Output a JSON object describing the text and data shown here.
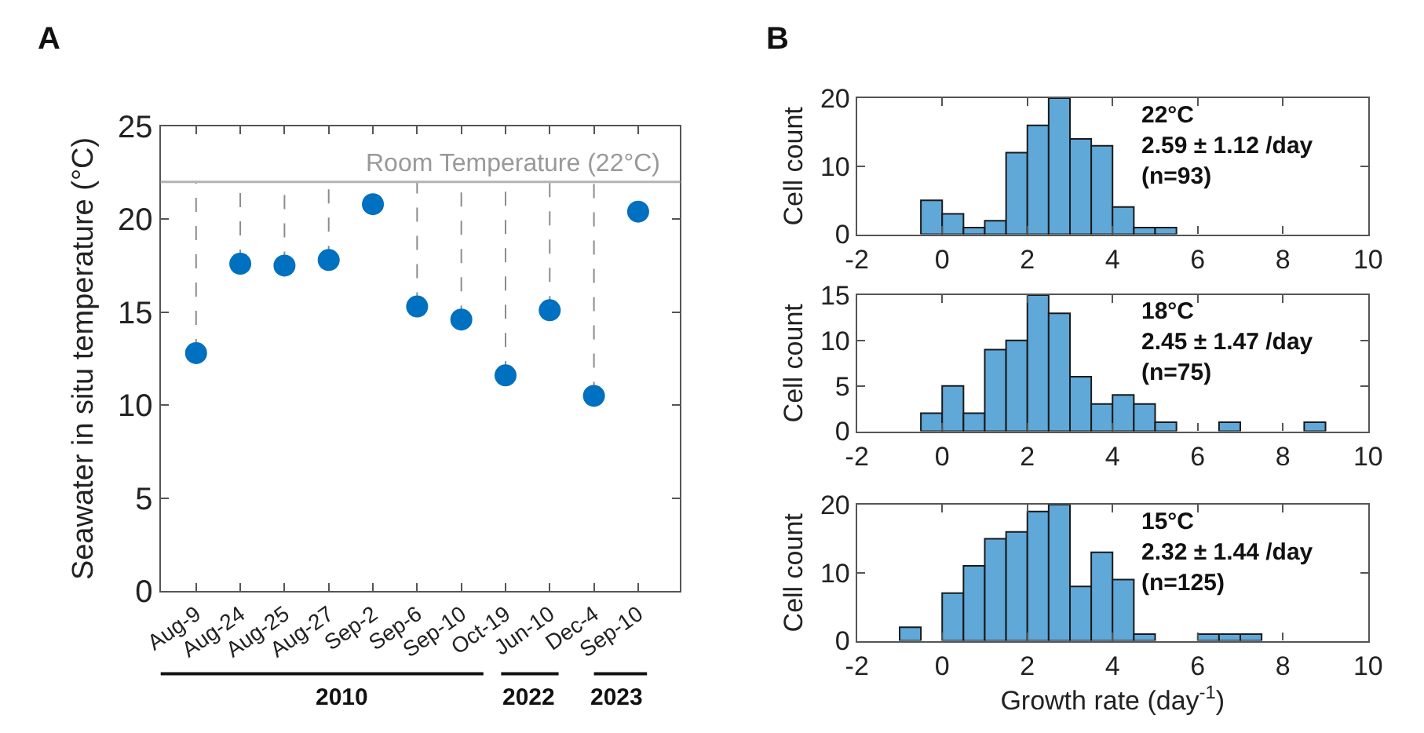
{
  "chart_data": [
    {
      "type": "scatter",
      "ylabel": "Seawater in situ temperature (°C)",
      "categories": [
        "Aug-9",
        "Aug-24",
        "Aug-25",
        "Aug-27",
        "Sep-2",
        "Sep-6",
        "Sep-10",
        "Oct-19",
        "Jun-10",
        "Dec-4",
        "Sep-10"
      ],
      "series": [
        {
          "color": "#0070c0",
          "values": [
            12.8,
            17.6,
            17.5,
            17.8,
            20.8,
            15.3,
            14.6,
            11.6,
            15.1,
            10.5,
            20.4
          ],
          "errors": [
            [
              12.8,
              22
            ],
            [
              17.6,
              22
            ],
            [
              17.5,
              22
            ],
            [
              17.8,
              22
            ],
            null,
            [
              15.3,
              22
            ],
            [
              14.6,
              22
            ],
            [
              11.6,
              22
            ],
            [
              15.1,
              22
            ],
            [
              10.5,
              22
            ],
            null
          ]
        }
      ],
      "ylim": [
        0,
        25
      ],
      "yticks": [
        0,
        5,
        10,
        15,
        20,
        25
      ],
      "marker": "circle",
      "grid": false,
      "ref_lines": [
        {
          "axis": "y",
          "value": 22,
          "label": "Room Temperature (22°C)",
          "color": "#b4b4b4"
        }
      ],
      "annotations": [
        "A",
        "2010",
        "2022",
        "2023"
      ]
    },
    {
      "type": "histogram",
      "ylabel": "Cell count",
      "bins": [
        -0.5,
        0,
        0.5,
        1,
        1.5,
        2,
        2.5,
        3,
        3.5,
        4,
        4.5,
        5,
        5.5
      ],
      "values": [
        5,
        3,
        1,
        2,
        12,
        16,
        20,
        14,
        13,
        4,
        1,
        1
      ],
      "color": "#5fa8d8",
      "xlim": [
        -2,
        10
      ],
      "xticks": [
        -2,
        0,
        2,
        4,
        6,
        8,
        10
      ],
      "ylim": [
        0,
        20
      ],
      "yticks": [
        0,
        10,
        20
      ],
      "grid": false,
      "annotations": [
        "B",
        "22°C\n2.59 ± 1.12 /day\n(n=93)"
      ]
    },
    {
      "type": "histogram",
      "ylabel": "Cell count",
      "bins": [
        -0.5,
        0,
        0.5,
        1,
        1.5,
        2,
        2.5,
        3,
        3.5,
        4,
        4.5,
        5,
        5.5,
        6,
        6.5,
        7,
        7.5,
        8,
        8.5,
        9
      ],
      "values": [
        2,
        5,
        2,
        9,
        10,
        15,
        13,
        6,
        3,
        4,
        3,
        1,
        0,
        0,
        1,
        0,
        0,
        0,
        1
      ],
      "color": "#5fa8d8",
      "xlim": [
        -2,
        10
      ],
      "xticks": [
        -2,
        0,
        2,
        4,
        6,
        8,
        10
      ],
      "ylim": [
        0,
        15
      ],
      "yticks": [
        0,
        5,
        10,
        15
      ],
      "grid": false,
      "annotations": [
        "18°C\n2.45 ± 1.47 /day\n(n=75)"
      ]
    },
    {
      "type": "histogram",
      "xlabel": "Growth rate (day$^{-1}$)",
      "ylabel": "Cell count",
      "bins": [
        -1,
        -0.5,
        0,
        0.5,
        1,
        1.5,
        2,
        2.5,
        3,
        3.5,
        4,
        4.5,
        5,
        5.5,
        6,
        6.5,
        7,
        7.5
      ],
      "values": [
        2,
        0,
        7,
        11,
        15,
        16,
        19,
        20,
        8,
        13,
        9,
        1,
        0,
        0,
        1,
        1,
        1
      ],
      "color": "#5fa8d8",
      "xlim": [
        -2,
        10
      ],
      "xticks": [
        -2,
        0,
        2,
        4,
        6,
        8,
        10
      ],
      "ylim": [
        0,
        20
      ],
      "yticks": [
        0,
        10,
        20
      ],
      "grid": false,
      "annotations": [
        "15°C\n2.32 ± 1.44 /day\n(n=125)"
      ]
    }
  ]
}
